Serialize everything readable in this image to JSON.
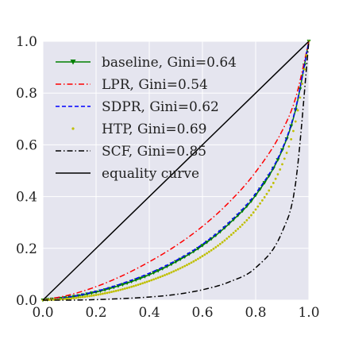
{
  "chart_data": {
    "type": "line",
    "xlim": [
      0.0,
      1.0
    ],
    "ylim": [
      0.0,
      1.0
    ],
    "xticks": [
      "0.0",
      "0.2",
      "0.4",
      "0.6",
      "0.8",
      "1.0"
    ],
    "yticks": [
      "0.0",
      "0.2",
      "0.4",
      "0.6",
      "0.8",
      "1.0"
    ],
    "grid": true,
    "legend_position": "upper-left",
    "background": "#e5e5ef",
    "series": [
      {
        "name": "baseline, Gini=0.64",
        "color": "#008000",
        "style": "solid-triangle-markers",
        "x": [
          0.0,
          0.1,
          0.2,
          0.3,
          0.4,
          0.5,
          0.6,
          0.7,
          0.8,
          0.9,
          0.95,
          1.0
        ],
        "y": [
          0.0,
          0.011,
          0.031,
          0.06,
          0.098,
          0.148,
          0.211,
          0.295,
          0.405,
          0.58,
          0.735,
          1.0
        ]
      },
      {
        "name": "LPR, Gini=0.54",
        "color": "#ff0000",
        "style": "dash-dot",
        "x": [
          0.0,
          0.1,
          0.2,
          0.3,
          0.4,
          0.5,
          0.6,
          0.7,
          0.8,
          0.9,
          0.95,
          1.0
        ],
        "y": [
          0.0,
          0.02,
          0.052,
          0.095,
          0.148,
          0.21,
          0.285,
          0.378,
          0.495,
          0.655,
          0.78,
          1.0
        ]
      },
      {
        "name": "SDPR, Gini=0.62",
        "color": "#0000ff",
        "style": "dashed",
        "x": [
          0.0,
          0.1,
          0.2,
          0.3,
          0.4,
          0.5,
          0.6,
          0.7,
          0.8,
          0.9,
          0.95,
          1.0
        ],
        "y": [
          0.0,
          0.012,
          0.034,
          0.065,
          0.104,
          0.153,
          0.216,
          0.3,
          0.412,
          0.585,
          0.74,
          1.0
        ]
      },
      {
        "name": "HTP, Gini=0.69",
        "color": "#bfbf00",
        "style": "dotted-markers",
        "x": [
          0.0,
          0.1,
          0.2,
          0.3,
          0.4,
          0.5,
          0.6,
          0.7,
          0.8,
          0.9,
          0.95,
          1.0
        ],
        "y": [
          0.0,
          0.006,
          0.02,
          0.042,
          0.074,
          0.115,
          0.17,
          0.245,
          0.35,
          0.525,
          0.69,
          1.0
        ]
      },
      {
        "name": "SCF, Gini=0.85",
        "color": "#000000",
        "style": "dash-dot",
        "x": [
          0.0,
          0.1,
          0.2,
          0.3,
          0.4,
          0.5,
          0.6,
          0.7,
          0.8,
          0.9,
          0.95,
          1.0
        ],
        "y": [
          0.0,
          0.0,
          0.002,
          0.006,
          0.012,
          0.022,
          0.04,
          0.07,
          0.125,
          0.265,
          0.45,
          1.0
        ]
      },
      {
        "name": "equality curve",
        "color": "#000000",
        "style": "solid",
        "x": [
          0.0,
          1.0
        ],
        "y": [
          0.0,
          1.0
        ]
      }
    ]
  }
}
